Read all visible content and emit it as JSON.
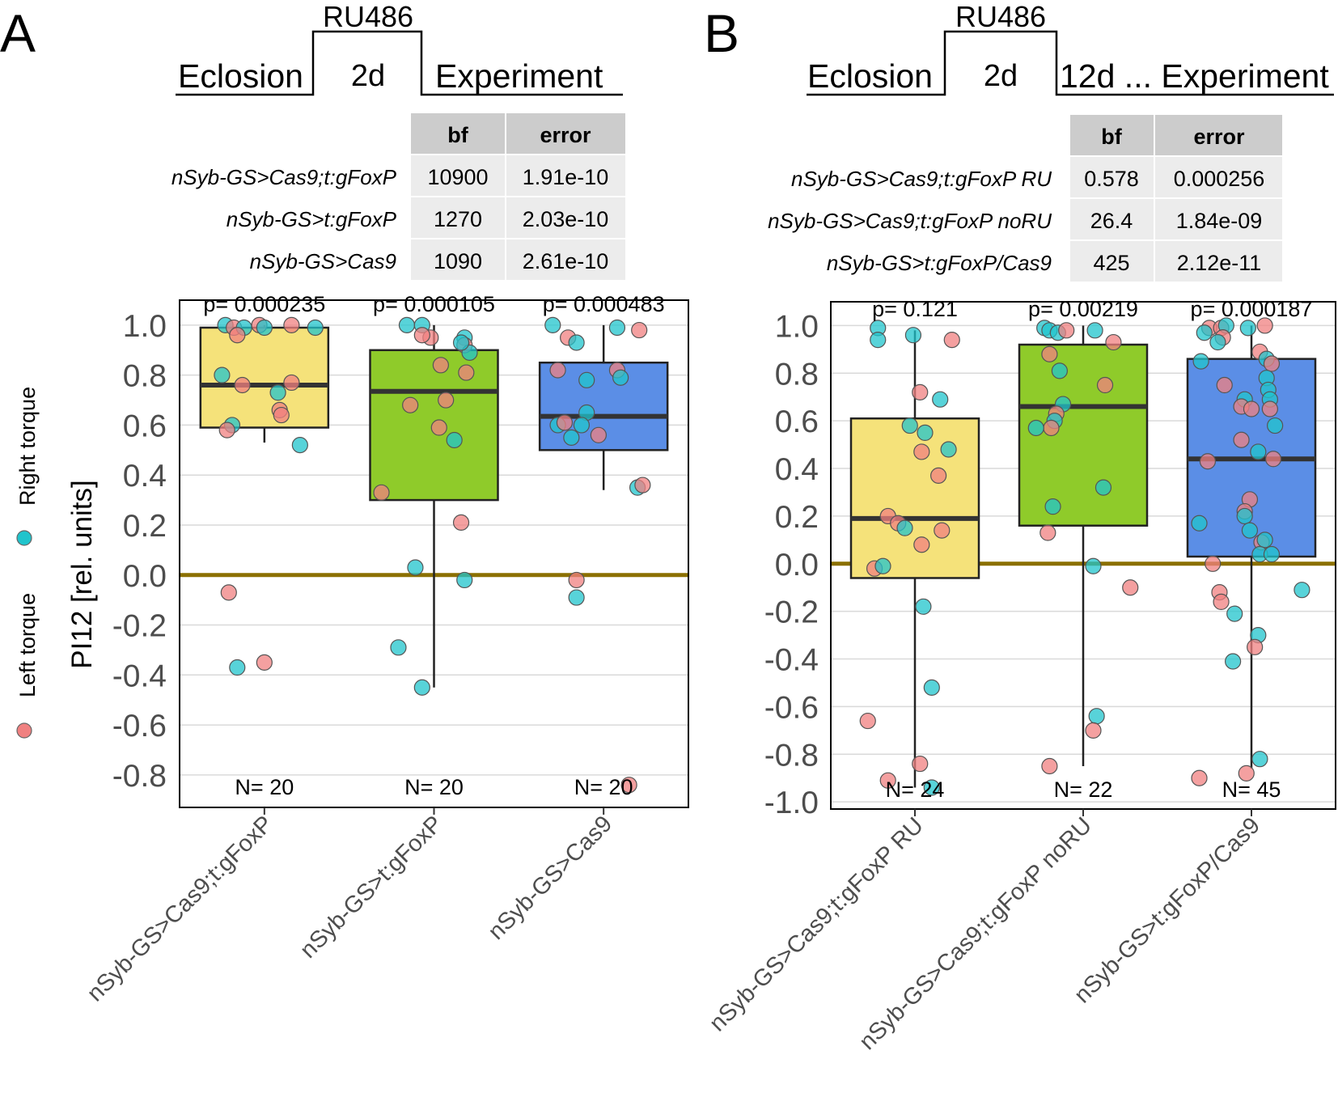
{
  "legend": {
    "left_label": "Left torque",
    "right_label": "Right torque",
    "left_color": "#f08080",
    "right_color": "#20c4cc"
  },
  "colors": {
    "zero_line": "#8b7000",
    "box_fills": [
      "#f5e27a",
      "#8fcb2a",
      "#5b8ee6"
    ],
    "table_header_bg": "#cccccc",
    "table_cell_bg": "#ececec"
  },
  "panels": [
    {
      "label": "A",
      "timeline": [
        "Eclosion",
        "RU486",
        "2d",
        "Experiment"
      ],
      "table": {
        "columns": [
          "bf",
          "error"
        ],
        "rows": [
          {
            "name": "nSyb-GS>Cas9;t:gFoxP",
            "bf": "10900",
            "error": "1.91e-10"
          },
          {
            "name": "nSyb-GS>t:gFoxP",
            "bf": "1270",
            "error": "2.03e-10"
          },
          {
            "name": "nSyb-GS>Cas9",
            "bf": "1090",
            "error": "2.61e-10"
          }
        ]
      }
    },
    {
      "label": "B",
      "timeline": [
        "Eclosion",
        "RU486",
        "2d",
        "12d ... Experiment"
      ],
      "table": {
        "columns": [
          "bf",
          "error"
        ],
        "rows": [
          {
            "name": "nSyb-GS>Cas9;t:gFoxP RU",
            "bf": "0.578",
            "error": "0.000256"
          },
          {
            "name": "nSyb-GS>Cas9;t:gFoxP noRU",
            "bf": "26.4",
            "error": "1.84e-09"
          },
          {
            "name": "nSyb-GS>t:gFoxP/Cas9",
            "bf": "425",
            "error": "2.12e-11"
          }
        ]
      }
    }
  ],
  "chart_data": [
    {
      "type": "box",
      "panel": "A",
      "ylabel": "PI12 [rel. units]",
      "ylim": [
        -0.93,
        1.1
      ],
      "yticks": [
        "1.0",
        "0.8",
        "0.6",
        "0.4",
        "0.2",
        "0.0",
        "-0.2",
        "-0.4",
        "-0.6",
        "-0.8"
      ],
      "yticks_values": [
        1.0,
        0.8,
        0.6,
        0.4,
        0.2,
        0.0,
        -0.2,
        -0.4,
        -0.6,
        -0.8
      ],
      "grid": true,
      "categories": [
        "nSyb-GS>Cas9;t:gFoxP",
        "nSyb-GS>t:gFoxP",
        "nSyb-GS>Cas9"
      ],
      "boxes": [
        {
          "q1": 0.59,
          "median": 0.76,
          "q3": 0.99,
          "whisker_low": 0.53,
          "whisker_high": 1.0
        },
        {
          "q1": 0.3,
          "median": 0.735,
          "q3": 0.9,
          "whisker_low": -0.45,
          "whisker_high": 1.0
        },
        {
          "q1": 0.5,
          "median": 0.635,
          "q3": 0.85,
          "whisker_low": 0.34,
          "whisker_high": 1.0
        }
      ],
      "p_values": [
        "p= 0.000235",
        "p= 0.000105",
        "p= 0.000483"
      ],
      "n_labels": [
        "N= 20",
        "N= 20",
        "N= 20"
      ],
      "points": [
        [
          {
            "x": 0.77,
            "y": 1.0,
            "side": "right"
          },
          {
            "x": 0.82,
            "y": 0.99,
            "side": "left"
          },
          {
            "x": 0.88,
            "y": 0.99,
            "side": "right"
          },
          {
            "x": 0.97,
            "y": 1.0,
            "side": "left"
          },
          {
            "x": 1.0,
            "y": 0.99,
            "side": "right"
          },
          {
            "x": 1.16,
            "y": 1.0,
            "side": "left"
          },
          {
            "x": 1.3,
            "y": 0.99,
            "side": "right"
          },
          {
            "x": 0.84,
            "y": 0.96,
            "side": "left"
          },
          {
            "x": 0.75,
            "y": 0.8,
            "side": "right"
          },
          {
            "x": 0.87,
            "y": 0.76,
            "side": "left"
          },
          {
            "x": 1.16,
            "y": 0.77,
            "side": "left"
          },
          {
            "x": 1.08,
            "y": 0.73,
            "side": "right"
          },
          {
            "x": 1.09,
            "y": 0.66,
            "side": "left"
          },
          {
            "x": 1.1,
            "y": 0.64,
            "side": "left"
          },
          {
            "x": 0.81,
            "y": 0.6,
            "side": "right"
          },
          {
            "x": 0.78,
            "y": 0.58,
            "side": "left"
          },
          {
            "x": 1.21,
            "y": 0.52,
            "side": "right"
          },
          {
            "x": 0.79,
            "y": -0.07,
            "side": "left"
          },
          {
            "x": 0.84,
            "y": -0.37,
            "side": "right"
          },
          {
            "x": 1.0,
            "y": -0.35,
            "side": "left"
          }
        ],
        [
          {
            "x": 1.84,
            "y": 1.0,
            "side": "right"
          },
          {
            "x": 1.93,
            "y": 1.0,
            "side": "right"
          },
          {
            "x": 1.98,
            "y": 0.95,
            "side": "left"
          },
          {
            "x": 2.18,
            "y": 0.95,
            "side": "right"
          },
          {
            "x": 2.18,
            "y": 0.92,
            "side": "left"
          },
          {
            "x": 2.21,
            "y": 0.89,
            "side": "right"
          },
          {
            "x": 2.04,
            "y": 0.84,
            "side": "left"
          },
          {
            "x": 2.19,
            "y": 0.81,
            "side": "left"
          },
          {
            "x": 2.07,
            "y": 0.7,
            "side": "left"
          },
          {
            "x": 1.86,
            "y": 0.68,
            "side": "left"
          },
          {
            "x": 2.03,
            "y": 0.59,
            "side": "left"
          },
          {
            "x": 2.12,
            "y": 0.54,
            "side": "right"
          },
          {
            "x": 1.69,
            "y": 0.33,
            "side": "left"
          },
          {
            "x": 2.16,
            "y": 0.21,
            "side": "left"
          },
          {
            "x": 1.89,
            "y": 0.03,
            "side": "right"
          },
          {
            "x": 2.18,
            "y": -0.02,
            "side": "right"
          },
          {
            "x": 1.79,
            "y": -0.29,
            "side": "right"
          },
          {
            "x": 1.93,
            "y": -0.45,
            "side": "right"
          },
          {
            "x": 1.93,
            "y": 0.96,
            "side": "left"
          },
          {
            "x": 2.16,
            "y": 0.93,
            "side": "right"
          }
        ],
        [
          {
            "x": 2.7,
            "y": 1.0,
            "side": "right"
          },
          {
            "x": 2.79,
            "y": 0.95,
            "side": "left"
          },
          {
            "x": 2.84,
            "y": 0.93,
            "side": "right"
          },
          {
            "x": 3.08,
            "y": 0.99,
            "side": "right"
          },
          {
            "x": 3.21,
            "y": 0.98,
            "side": "left"
          },
          {
            "x": 2.73,
            "y": 0.82,
            "side": "left"
          },
          {
            "x": 3.08,
            "y": 0.82,
            "side": "left"
          },
          {
            "x": 3.1,
            "y": 0.79,
            "side": "right"
          },
          {
            "x": 2.9,
            "y": 0.78,
            "side": "right"
          },
          {
            "x": 2.9,
            "y": 0.65,
            "side": "right"
          },
          {
            "x": 2.73,
            "y": 0.6,
            "side": "right"
          },
          {
            "x": 2.77,
            "y": 0.61,
            "side": "left"
          },
          {
            "x": 2.87,
            "y": 0.6,
            "side": "right"
          },
          {
            "x": 2.97,
            "y": 0.56,
            "side": "left"
          },
          {
            "x": 3.2,
            "y": 0.35,
            "side": "right"
          },
          {
            "x": 3.23,
            "y": 0.36,
            "side": "left"
          },
          {
            "x": 2.84,
            "y": -0.02,
            "side": "left"
          },
          {
            "x": 2.84,
            "y": -0.09,
            "side": "right"
          },
          {
            "x": 3.15,
            "y": -0.84,
            "side": "left"
          },
          {
            "x": 2.81,
            "y": 0.55,
            "side": "right"
          }
        ]
      ]
    },
    {
      "type": "box",
      "panel": "B",
      "ylabel": "",
      "ylim": [
        -1.03,
        1.1
      ],
      "yticks": [
        "1.0",
        "0.8",
        "0.6",
        "0.4",
        "0.2",
        "0.0",
        "-0.2",
        "-0.4",
        "-0.6",
        "-0.8",
        "-1.0"
      ],
      "yticks_values": [
        1.0,
        0.8,
        0.6,
        0.4,
        0.2,
        0.0,
        -0.2,
        -0.4,
        -0.6,
        -0.8,
        -1.0
      ],
      "grid": true,
      "categories": [
        "nSyb-GS>Cas9;t:gFoxP RU",
        "nSyb-GS>Cas9;t:gFoxP noRU",
        "nSyb-GS>t:gFoxP/Cas9"
      ],
      "boxes": [
        {
          "q1": -0.06,
          "median": 0.19,
          "q3": 0.61,
          "whisker_low": -0.94,
          "whisker_high": 0.98
        },
        {
          "q1": 0.16,
          "median": 0.66,
          "q3": 0.92,
          "whisker_low": -0.85,
          "whisker_high": 1.0
        },
        {
          "q1": 0.03,
          "median": 0.44,
          "q3": 0.86,
          "whisker_low": -0.86,
          "whisker_high": 1.0
        }
      ],
      "p_values": [
        "p= 0.121",
        "p= 0.00219",
        "p= 0.000187"
      ],
      "n_labels": [
        "N= 24",
        "N= 22",
        "N= 45"
      ],
      "points": [
        [
          {
            "x": 0.78,
            "y": 0.99,
            "side": "right"
          },
          {
            "x": 0.78,
            "y": 0.94,
            "side": "right"
          },
          {
            "x": 0.99,
            "y": 0.96,
            "side": "right"
          },
          {
            "x": 1.22,
            "y": 0.94,
            "side": "left"
          },
          {
            "x": 1.03,
            "y": 0.72,
            "side": "left"
          },
          {
            "x": 1.15,
            "y": 0.69,
            "side": "right"
          },
          {
            "x": 0.97,
            "y": 0.58,
            "side": "right"
          },
          {
            "x": 1.06,
            "y": 0.55,
            "side": "right"
          },
          {
            "x": 1.04,
            "y": 0.47,
            "side": "left"
          },
          {
            "x": 1.2,
            "y": 0.48,
            "side": "right"
          },
          {
            "x": 1.14,
            "y": 0.37,
            "side": "left"
          },
          {
            "x": 0.84,
            "y": 0.2,
            "side": "left"
          },
          {
            "x": 0.9,
            "y": 0.17,
            "side": "left"
          },
          {
            "x": 0.94,
            "y": 0.15,
            "side": "right"
          },
          {
            "x": 1.16,
            "y": 0.14,
            "side": "left"
          },
          {
            "x": 1.04,
            "y": 0.08,
            "side": "left"
          },
          {
            "x": 0.76,
            "y": -0.02,
            "side": "left"
          },
          {
            "x": 0.81,
            "y": -0.01,
            "side": "right"
          },
          {
            "x": 1.05,
            "y": -0.18,
            "side": "right"
          },
          {
            "x": 1.1,
            "y": -0.52,
            "side": "right"
          },
          {
            "x": 0.72,
            "y": -0.66,
            "side": "left"
          },
          {
            "x": 1.03,
            "y": -0.84,
            "side": "left"
          },
          {
            "x": 0.84,
            "y": -0.91,
            "side": "left"
          },
          {
            "x": 1.1,
            "y": -0.94,
            "side": "right"
          }
        ],
        [
          {
            "x": 1.77,
            "y": 0.99,
            "side": "right"
          },
          {
            "x": 1.8,
            "y": 0.98,
            "side": "right"
          },
          {
            "x": 1.85,
            "y": 0.97,
            "side": "right"
          },
          {
            "x": 2.07,
            "y": 0.98,
            "side": "right"
          },
          {
            "x": 2.18,
            "y": 0.93,
            "side": "left"
          },
          {
            "x": 1.8,
            "y": 0.88,
            "side": "left"
          },
          {
            "x": 1.86,
            "y": 0.81,
            "side": "right"
          },
          {
            "x": 2.13,
            "y": 0.75,
            "side": "left"
          },
          {
            "x": 1.88,
            "y": 0.67,
            "side": "right"
          },
          {
            "x": 1.84,
            "y": 0.63,
            "side": "left"
          },
          {
            "x": 1.83,
            "y": 0.6,
            "side": "right"
          },
          {
            "x": 1.81,
            "y": 0.57,
            "side": "left"
          },
          {
            "x": 1.72,
            "y": 0.57,
            "side": "right"
          },
          {
            "x": 2.12,
            "y": 0.32,
            "side": "right"
          },
          {
            "x": 1.82,
            "y": 0.24,
            "side": "right"
          },
          {
            "x": 1.79,
            "y": 0.13,
            "side": "left"
          },
          {
            "x": 2.06,
            "y": -0.01,
            "side": "right"
          },
          {
            "x": 2.28,
            "y": -0.1,
            "side": "left"
          },
          {
            "x": 2.08,
            "y": -0.64,
            "side": "right"
          },
          {
            "x": 2.06,
            "y": -0.7,
            "side": "left"
          },
          {
            "x": 1.8,
            "y": -0.85,
            "side": "left"
          },
          {
            "x": 1.9,
            "y": 0.98,
            "side": "left"
          }
        ],
        [
          {
            "x": 2.75,
            "y": 0.99,
            "side": "left"
          },
          {
            "x": 2.72,
            "y": 0.97,
            "side": "right"
          },
          {
            "x": 2.82,
            "y": 0.99,
            "side": "left"
          },
          {
            "x": 2.85,
            "y": 1.0,
            "side": "right"
          },
          {
            "x": 2.98,
            "y": 0.99,
            "side": "right"
          },
          {
            "x": 3.08,
            "y": 1.0,
            "side": "left"
          },
          {
            "x": 2.83,
            "y": 0.95,
            "side": "left"
          },
          {
            "x": 2.8,
            "y": 0.93,
            "side": "right"
          },
          {
            "x": 3.05,
            "y": 0.89,
            "side": "left"
          },
          {
            "x": 3.09,
            "y": 0.86,
            "side": "right"
          },
          {
            "x": 3.12,
            "y": 0.84,
            "side": "left"
          },
          {
            "x": 2.7,
            "y": 0.85,
            "side": "right"
          },
          {
            "x": 3.09,
            "y": 0.78,
            "side": "right"
          },
          {
            "x": 2.84,
            "y": 0.75,
            "side": "left"
          },
          {
            "x": 3.1,
            "y": 0.73,
            "side": "right"
          },
          {
            "x": 3.11,
            "y": 0.69,
            "side": "right"
          },
          {
            "x": 2.96,
            "y": 0.69,
            "side": "right"
          },
          {
            "x": 2.94,
            "y": 0.66,
            "side": "left"
          },
          {
            "x": 3.0,
            "y": 0.65,
            "side": "left"
          },
          {
            "x": 3.11,
            "y": 0.65,
            "side": "left"
          },
          {
            "x": 3.04,
            "y": 0.47,
            "side": "right"
          },
          {
            "x": 3.13,
            "y": 0.44,
            "side": "left"
          },
          {
            "x": 2.74,
            "y": 0.43,
            "side": "left"
          },
          {
            "x": 2.99,
            "y": 0.27,
            "side": "left"
          },
          {
            "x": 2.96,
            "y": 0.22,
            "side": "left"
          },
          {
            "x": 2.96,
            "y": 0.2,
            "side": "right"
          },
          {
            "x": 2.69,
            "y": 0.17,
            "side": "right"
          },
          {
            "x": 2.99,
            "y": 0.14,
            "side": "right"
          },
          {
            "x": 3.06,
            "y": 0.09,
            "side": "left"
          },
          {
            "x": 3.08,
            "y": 0.1,
            "side": "right"
          },
          {
            "x": 3.05,
            "y": 0.04,
            "side": "right"
          },
          {
            "x": 3.12,
            "y": 0.04,
            "side": "right"
          },
          {
            "x": 2.77,
            "y": 0.0,
            "side": "left"
          },
          {
            "x": 3.3,
            "y": -0.11,
            "side": "right"
          },
          {
            "x": 2.81,
            "y": -0.12,
            "side": "left"
          },
          {
            "x": 2.82,
            "y": -0.16,
            "side": "left"
          },
          {
            "x": 2.9,
            "y": -0.21,
            "side": "right"
          },
          {
            "x": 3.04,
            "y": -0.3,
            "side": "right"
          },
          {
            "x": 3.02,
            "y": -0.35,
            "side": "left"
          },
          {
            "x": 2.89,
            "y": -0.41,
            "side": "right"
          },
          {
            "x": 3.05,
            "y": -0.82,
            "side": "right"
          },
          {
            "x": 2.69,
            "y": -0.9,
            "side": "left"
          },
          {
            "x": 2.97,
            "y": -0.88,
            "side": "left"
          },
          {
            "x": 2.94,
            "y": 0.52,
            "side": "left"
          },
          {
            "x": 3.14,
            "y": 0.58,
            "side": "right"
          }
        ]
      ]
    }
  ]
}
